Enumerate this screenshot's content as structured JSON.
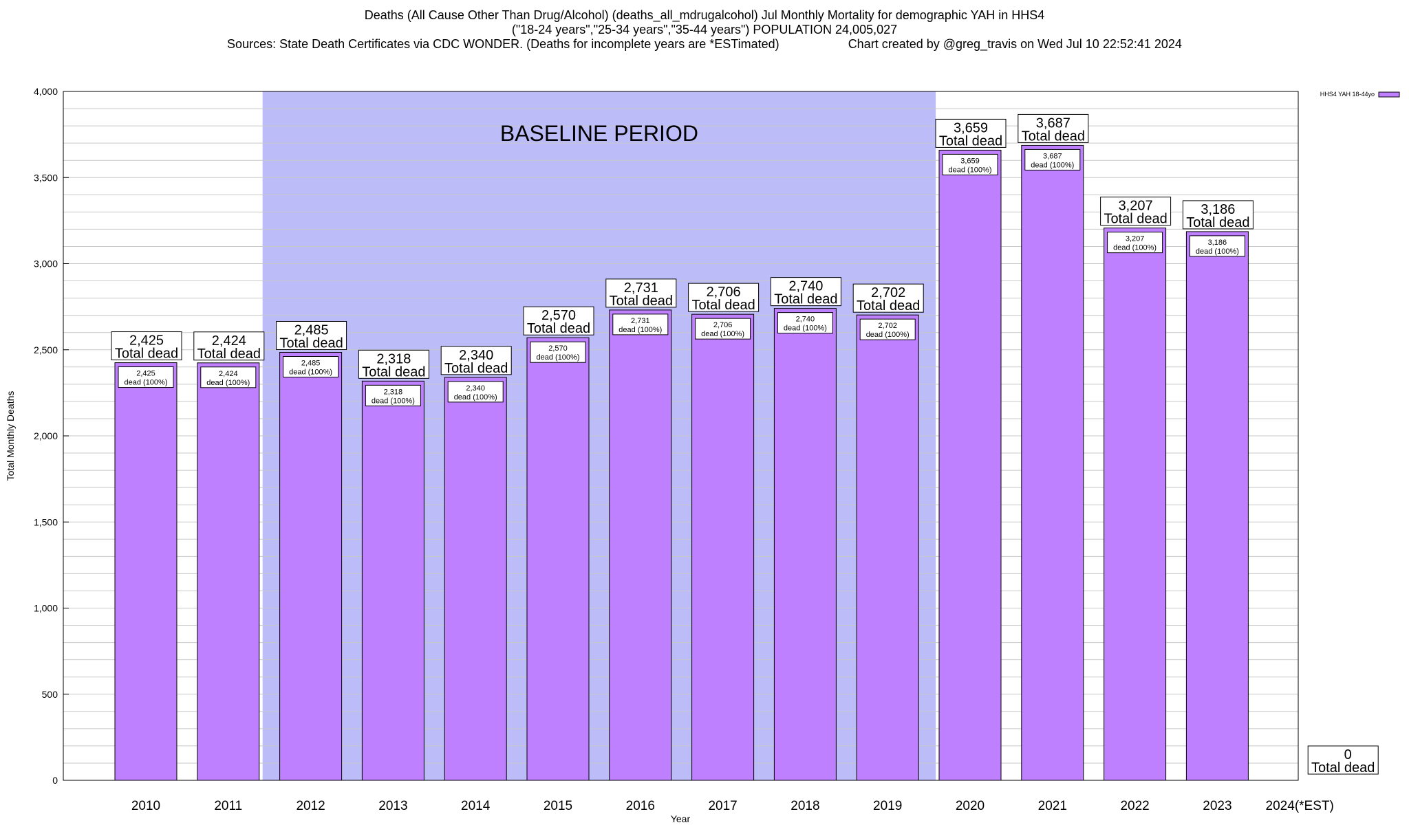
{
  "header": {
    "title_line1": "Deaths (All Cause Other Than Drug/Alcohol) (deaths_all_mdrugalcohol) Jul Monthly Mortality for demographic YAH in HHS4",
    "title_line2": "(\"18-24 years\",\"25-34 years\",\"35-44 years\") POPULATION 24,005,027",
    "sources": "Sources: State Death Certificates via CDC WONDER. (Deaths for incomplete years are *ESTimated)",
    "credit": "Chart created by @greg_travis on Wed Jul 10 22:52:41 2024"
  },
  "chart_data": {
    "type": "bar",
    "xlabel": "Year",
    "ylabel": "Total Monthly Deaths",
    "ylim": [
      0,
      4000
    ],
    "ytick_labels": [
      "0",
      "500",
      "1,000",
      "1,500",
      "2,000",
      "2,500",
      "3,000",
      "3,500",
      "4,000"
    ],
    "grid": true,
    "legend": {
      "position": "top-right",
      "label": "HHS4 YAH 18-44yo"
    },
    "baseline_label": "BASELINE PERIOD",
    "baseline_period": [
      "2012",
      "2019"
    ],
    "total_suffix": "Total dead",
    "inner_suffix": "dead (100%)",
    "categories": [
      "2010",
      "2011",
      "2012",
      "2013",
      "2014",
      "2015",
      "2016",
      "2017",
      "2018",
      "2019",
      "2020",
      "2021",
      "2022",
      "2023",
      "2024(*EST)"
    ],
    "values": [
      2425,
      2424,
      2485,
      2318,
      2340,
      2570,
      2731,
      2706,
      2740,
      2702,
      3659,
      3687,
      3207,
      3186,
      0
    ],
    "value_labels": [
      "2,425",
      "2,424",
      "2,485",
      "2,318",
      "2,340",
      "2,570",
      "2,731",
      "2,706",
      "2,740",
      "2,702",
      "3,659",
      "3,687",
      "3,207",
      "3,186",
      "0"
    ],
    "colors": {
      "bar": "#bf80ff",
      "baseline": "#bcbcf8",
      "grid": "#c8c8c8"
    }
  }
}
